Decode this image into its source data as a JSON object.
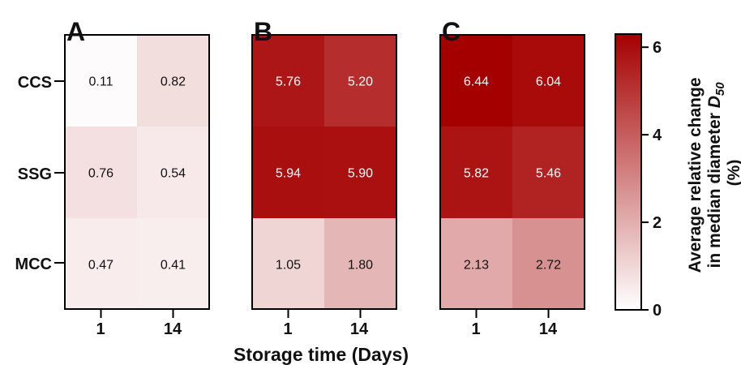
{
  "chart_data": {
    "type": "heatmap",
    "xlabel": "Storage time (Days)",
    "row_labels": [
      "CCS",
      "SSG",
      "MCC"
    ],
    "column_labels": [
      "1",
      "14"
    ],
    "panels": [
      {
        "label": "A",
        "values": [
          [
            0.11,
            0.82
          ],
          [
            0.76,
            0.54
          ],
          [
            0.47,
            0.41
          ]
        ],
        "text": [
          [
            "0.11",
            "0.82"
          ],
          [
            "0.76",
            "0.54"
          ],
          [
            "0.47",
            "0.41"
          ]
        ]
      },
      {
        "label": "B",
        "values": [
          [
            5.76,
            5.2
          ],
          [
            5.94,
            5.9
          ],
          [
            1.05,
            1.8
          ]
        ],
        "text": [
          [
            "5.76",
            "5.20"
          ],
          [
            "5.94",
            "5.90"
          ],
          [
            "1.05",
            "1.80"
          ]
        ]
      },
      {
        "label": "C",
        "values": [
          [
            6.44,
            6.04
          ],
          [
            5.82,
            5.46
          ],
          [
            2.13,
            2.72
          ]
        ],
        "text": [
          [
            "6.44",
            "6.04"
          ],
          [
            "5.82",
            "5.46"
          ],
          [
            "2.13",
            "2.72"
          ]
        ]
      }
    ],
    "colorbar": {
      "title_line1": "Average relative change",
      "title_line2": "in median diameter",
      "title_symbol": "D",
      "title_subscript": "50",
      "title_line3": "(%)",
      "range": [
        0,
        6.3
      ],
      "ticks": [
        "0",
        "2",
        "4",
        "6"
      ],
      "tick_values": [
        0,
        2,
        4,
        6
      ],
      "color_low": "#ffffff",
      "color_high": "#a50000"
    }
  }
}
